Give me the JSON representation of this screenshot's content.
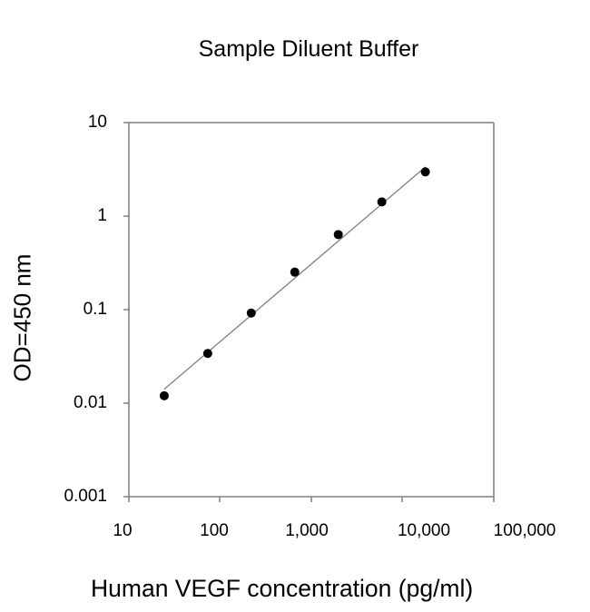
{
  "chart_data": {
    "type": "scatter",
    "title": "Sample Diluent Buffer",
    "xlabel": "Human VEGF concentration (pg/ml)",
    "ylabel": "OD=450 nm",
    "xscale": "log",
    "yscale": "log",
    "xlim": [
      10,
      100000
    ],
    "ylim": [
      0.001,
      10
    ],
    "x_ticks": [
      "10",
      "100",
      "1,000",
      "10,000",
      "100,000"
    ],
    "y_ticks": [
      "10",
      "1",
      "0.1",
      "0.01",
      "0.001"
    ],
    "grid": false,
    "legend": null,
    "series": [
      {
        "name": "Sample Diluent Buffer",
        "marker": "filled-circle",
        "x": [
          24.4,
          73.2,
          219.5,
          658.4,
          1975.3,
          5925.9,
          17777.8
        ],
        "y": [
          0.012,
          0.034,
          0.092,
          0.252,
          0.635,
          1.42,
          2.97
        ]
      }
    ],
    "fit_line": {
      "type": "linear (log-log)",
      "x": [
        24.4,
        17777.8
      ],
      "y": [
        0.0141,
        3.35
      ]
    }
  }
}
